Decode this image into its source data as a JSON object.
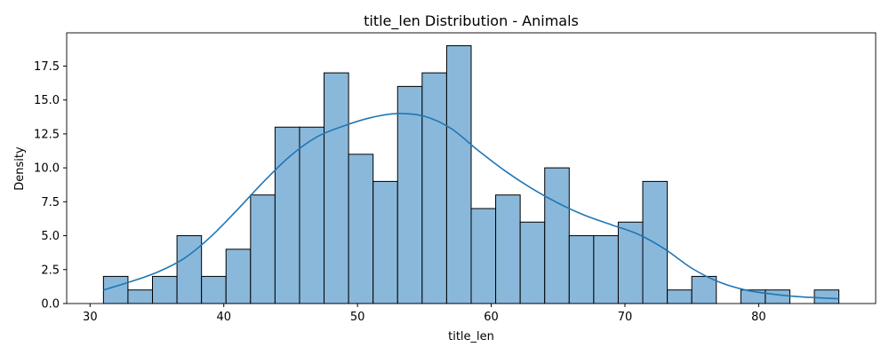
{
  "chart_data": {
    "type": "bar",
    "title": "title_len Distribution - Animals",
    "xlabel": "title_len",
    "ylabel": "Density",
    "xlim": [
      28.25,
      88.75
    ],
    "ylim": [
      0,
      19.95
    ],
    "xticks": [
      30,
      40,
      50,
      60,
      70,
      80
    ],
    "yticks": [
      0.0,
      2.5,
      5.0,
      7.5,
      10.0,
      12.5,
      15.0,
      17.5
    ],
    "bin_start": 31,
    "bin_width": 1.8333,
    "values": [
      2,
      1,
      2,
      5,
      2,
      4,
      8,
      13,
      13,
      17,
      11,
      9,
      16,
      17,
      19,
      7,
      8,
      6,
      10,
      5,
      5,
      6,
      9,
      1,
      2,
      0,
      1,
      1,
      0,
      1
    ],
    "bar_color": "#8ab8db",
    "bar_edge_color": "#000000",
    "kde": {
      "color": "#1f77b4",
      "x": [
        31,
        33,
        35,
        37,
        39,
        41,
        43,
        45,
        47,
        49,
        51,
        53,
        55,
        57,
        59,
        61,
        63,
        65,
        67,
        69,
        71,
        73,
        75,
        77,
        79,
        81,
        83,
        86
      ],
      "y": [
        1.0,
        1.6,
        2.3,
        3.3,
        4.9,
        6.9,
        9.0,
        10.9,
        12.3,
        13.1,
        13.7,
        14.0,
        13.8,
        12.9,
        11.3,
        9.8,
        8.5,
        7.4,
        6.5,
        5.8,
        5.1,
        4.0,
        2.6,
        1.6,
        1.0,
        0.7,
        0.5,
        0.35
      ]
    }
  }
}
